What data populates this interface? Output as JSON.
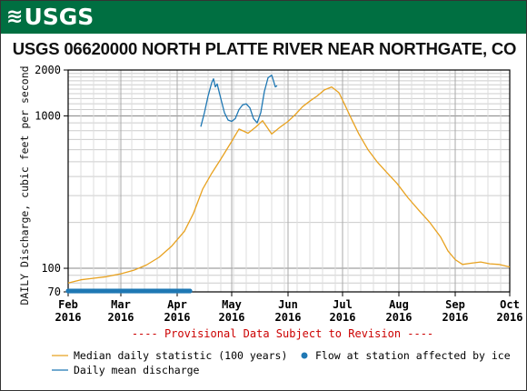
{
  "header": {
    "logo_text": "USGS",
    "logo_color": "#ffffff",
    "banner_color": "#006f41"
  },
  "chart_data": {
    "type": "line",
    "title": "USGS 06620000 NORTH PLATTE RIVER NEAR NORTHGATE, CO",
    "ylabel": "DAILY Discharge, cubic feet per second",
    "xlabel": "",
    "yscale": "log",
    "ylim": [
      70,
      2000
    ],
    "yticks": [
      {
        "value": 70,
        "label": "70"
      },
      {
        "value": 100,
        "label": "100"
      },
      {
        "value": 1000,
        "label": "1000"
      },
      {
        "value": 2000,
        "label": "2000"
      }
    ],
    "xlim": [
      "2016-02-01",
      "2016-10-01"
    ],
    "xticks": [
      {
        "date": "2016-02-01",
        "month": "Feb",
        "year": "2016"
      },
      {
        "date": "2016-03-01",
        "month": "Mar",
        "year": "2016"
      },
      {
        "date": "2016-04-01",
        "month": "Apr",
        "year": "2016"
      },
      {
        "date": "2016-05-01",
        "month": "May",
        "year": "2016"
      },
      {
        "date": "2016-06-01",
        "month": "Jun",
        "year": "2016"
      },
      {
        "date": "2016-07-01",
        "month": "Jul",
        "year": "2016"
      },
      {
        "date": "2016-08-01",
        "month": "Aug",
        "year": "2016"
      },
      {
        "date": "2016-09-01",
        "month": "Sep",
        "year": "2016"
      },
      {
        "date": "2016-10-01",
        "month": "Oct",
        "year": "2016"
      }
    ],
    "grid": true,
    "annotation": "---- Provisional Data Subject to Revision ----",
    "annotation_color": "#cc0000",
    "series": [
      {
        "name": "Median daily statistic (100 years)",
        "color": "#e8a220",
        "style": "line",
        "points": [
          [
            "2016-02-01",
            80
          ],
          [
            "2016-02-08",
            84
          ],
          [
            "2016-02-15",
            86
          ],
          [
            "2016-02-22",
            88
          ],
          [
            "2016-03-01",
            92
          ],
          [
            "2016-03-08",
            97
          ],
          [
            "2016-03-15",
            105
          ],
          [
            "2016-03-22",
            118
          ],
          [
            "2016-03-29",
            140
          ],
          [
            "2016-04-05",
            175
          ],
          [
            "2016-04-10",
            230
          ],
          [
            "2016-04-15",
            330
          ],
          [
            "2016-04-20",
            420
          ],
          [
            "2016-04-25",
            520
          ],
          [
            "2016-05-01",
            680
          ],
          [
            "2016-05-05",
            820
          ],
          [
            "2016-05-10",
            770
          ],
          [
            "2016-05-14",
            840
          ],
          [
            "2016-05-18",
            930
          ],
          [
            "2016-05-23",
            760
          ],
          [
            "2016-05-28",
            850
          ],
          [
            "2016-06-01",
            920
          ],
          [
            "2016-06-05",
            1020
          ],
          [
            "2016-06-09",
            1150
          ],
          [
            "2016-06-13",
            1250
          ],
          [
            "2016-06-17",
            1350
          ],
          [
            "2016-06-21",
            1480
          ],
          [
            "2016-06-25",
            1550
          ],
          [
            "2016-06-29",
            1420
          ],
          [
            "2016-07-02",
            1200
          ],
          [
            "2016-07-06",
            950
          ],
          [
            "2016-07-10",
            760
          ],
          [
            "2016-07-15",
            600
          ],
          [
            "2016-07-20",
            500
          ],
          [
            "2016-07-25",
            430
          ],
          [
            "2016-07-31",
            360
          ],
          [
            "2016-08-06",
            290
          ],
          [
            "2016-08-12",
            240
          ],
          [
            "2016-08-18",
            200
          ],
          [
            "2016-08-24",
            160
          ],
          [
            "2016-08-28",
            130
          ],
          [
            "2016-09-01",
            114
          ],
          [
            "2016-09-05",
            106
          ],
          [
            "2016-09-10",
            108
          ],
          [
            "2016-09-15",
            110
          ],
          [
            "2016-09-20",
            107
          ],
          [
            "2016-09-25",
            106
          ],
          [
            "2016-10-01",
            102
          ]
        ]
      },
      {
        "name": "Daily mean discharge",
        "color": "#1f78b4",
        "style": "line",
        "points": [
          [
            "2016-04-14",
            850
          ],
          [
            "2016-04-16",
            1050
          ],
          [
            "2016-04-18",
            1350
          ],
          [
            "2016-04-20",
            1650
          ],
          [
            "2016-04-21",
            1750
          ],
          [
            "2016-04-22",
            1550
          ],
          [
            "2016-04-23",
            1620
          ],
          [
            "2016-04-25",
            1300
          ],
          [
            "2016-04-27",
            1050
          ],
          [
            "2016-04-29",
            940
          ],
          [
            "2016-05-01",
            920
          ],
          [
            "2016-05-03",
            960
          ],
          [
            "2016-05-05",
            1100
          ],
          [
            "2016-05-07",
            1180
          ],
          [
            "2016-05-09",
            1200
          ],
          [
            "2016-05-11",
            1130
          ],
          [
            "2016-05-13",
            960
          ],
          [
            "2016-05-15",
            900
          ],
          [
            "2016-05-17",
            1050
          ],
          [
            "2016-05-19",
            1450
          ],
          [
            "2016-05-21",
            1780
          ],
          [
            "2016-05-23",
            1850
          ],
          [
            "2016-05-24",
            1700
          ],
          [
            "2016-05-25",
            1550
          ],
          [
            "2016-05-26",
            1580
          ]
        ]
      },
      {
        "name": "Flow at station affected by ice",
        "color": "#1f78b4",
        "style": "markers",
        "marker": "circle",
        "y": 70,
        "date_range": [
          "2016-02-01",
          "2016-04-08"
        ]
      }
    ],
    "legend": [
      {
        "label": "Median daily statistic (100 years)",
        "kind": "line",
        "color": "#e8a220"
      },
      {
        "label": "Flow at station affected by ice",
        "kind": "dot",
        "color": "#1f78b4"
      },
      {
        "label": "Daily mean discharge",
        "kind": "line",
        "color": "#1f78b4"
      }
    ],
    "legend_position": "bottom"
  }
}
